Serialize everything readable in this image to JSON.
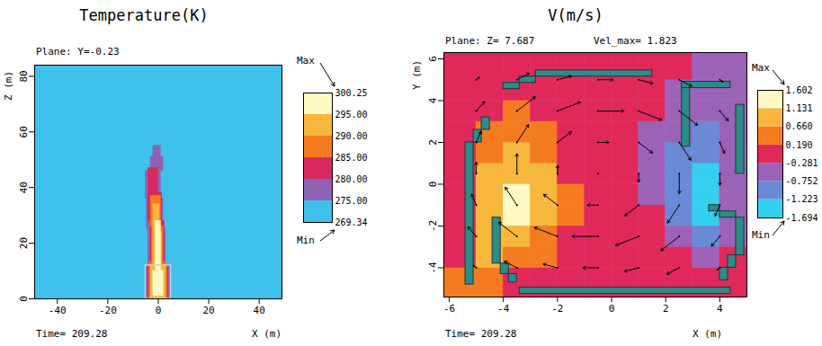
{
  "chart_data": [
    {
      "type": "heatmap",
      "title": "Temperature(K)",
      "subtitle": "Plane: Y=-0.23",
      "caption": "Time= 209.28",
      "x_label": "X (m)",
      "y_label": "Z (m)",
      "xlim": [
        -49,
        49
      ],
      "xticks": [
        -40,
        -20,
        0,
        20,
        40
      ],
      "ylim": [
        0,
        84
      ],
      "yticks": [
        0,
        20,
        40,
        60,
        80
      ],
      "cells": [
        [
          -49,
          49,
          0,
          84,
          271
        ],
        [
          -5,
          5,
          0,
          12,
          277
        ],
        [
          -4,
          3,
          12,
          25,
          277
        ],
        [
          -4.5,
          2,
          25,
          36,
          277
        ],
        [
          -5,
          1,
          36,
          46,
          277
        ],
        [
          -3,
          2,
          46,
          51,
          277
        ],
        [
          -2,
          1,
          51,
          55,
          277
        ],
        [
          -4,
          4,
          0,
          12,
          282
        ],
        [
          -3,
          2.5,
          12,
          28,
          282
        ],
        [
          -4,
          1.5,
          28,
          38,
          282
        ],
        [
          -4,
          0,
          38,
          47,
          282
        ],
        [
          -3.5,
          3.5,
          0,
          13,
          287
        ],
        [
          -2.5,
          2,
          13,
          26,
          287
        ],
        [
          -3,
          1,
          26,
          37,
          287
        ],
        [
          -3,
          3,
          0,
          12,
          292
        ],
        [
          -2,
          1.5,
          12,
          24,
          292
        ],
        [
          -2,
          0.5,
          24,
          34,
          292
        ],
        [
          -2,
          2,
          1,
          10,
          297
        ],
        [
          -1,
          1,
          10,
          28,
          297
        ]
      ],
      "obstacles": {
        "color": "#d0d0d0",
        "rects": [
          [
            -5,
            5,
            0,
            12
          ]
        ]
      },
      "colorbar": {
        "max_label": "Max",
        "min_label": "Min",
        "ticks": [
          269.34,
          {
            "value": 275,
            "label": "275.00"
          },
          {
            "value": 280,
            "label": "280.00"
          },
          {
            "value": 285,
            "label": "285.00"
          },
          {
            "value": 290,
            "label": "290.00"
          },
          {
            "value": 295,
            "label": "295.00"
          },
          300.25
        ],
        "colors": [
          "#3fc1ec",
          "#8e63b4",
          "#d62a5e",
          "#f47b20",
          "#f6b73c",
          "#fff9c4"
        ]
      }
    },
    {
      "type": "vector_field",
      "title": "V(m/s)",
      "subtitle": "Plane: Z= 7.687",
      "annotation": "Vel_max= 1.823",
      "caption": "Time= 209.28",
      "x_label": "X (m)",
      "y_label": "Y (m)",
      "xlim": [
        -6.2,
        5
      ],
      "xticks": [
        -6,
        -4,
        -2,
        0,
        2,
        4
      ],
      "ylim": [
        -5.4,
        6.3
      ],
      "yticks": [
        -4,
        -2,
        0,
        2,
        4,
        6
      ],
      "cells": {
        "x_edges": [
          -6.2,
          -5,
          -4,
          -3,
          -2,
          -1,
          0,
          1,
          2,
          3,
          4,
          5
        ],
        "y_edges": [
          -5.4,
          -4,
          -3,
          -2,
          -1,
          0,
          1,
          2,
          3,
          4,
          5,
          6.3
        ],
        "values": [
          [
            0.3,
            0.5,
            0.1,
            0,
            0,
            0,
            0,
            0,
            0,
            -0.1,
            -0.1
          ],
          [
            0,
            0.7,
            0.5,
            0.2,
            0,
            0,
            0,
            0,
            -0.1,
            -0.4,
            -0.2
          ],
          [
            0,
            0.8,
            0.9,
            0.4,
            0.1,
            0,
            0,
            -0.1,
            -0.5,
            -0.9,
            -0.4
          ],
          [
            0,
            0.9,
            1.2,
            0.7,
            0.2,
            0,
            0,
            -0.2,
            -0.8,
            -1.3,
            -0.6
          ],
          [
            0,
            0.8,
            1.2,
            0.8,
            0.2,
            0,
            -0.1,
            -0.3,
            -0.9,
            -1.4,
            -0.7
          ],
          [
            0,
            0.7,
            1.1,
            0.7,
            0.1,
            0,
            -0.1,
            -0.4,
            -1.0,
            -1.3,
            -0.6
          ],
          [
            0,
            0.5,
            0.8,
            0.5,
            0.1,
            0,
            -0.1,
            -0.4,
            -0.9,
            -1.1,
            -0.5
          ],
          [
            0,
            0.3,
            0.5,
            0.3,
            0,
            0,
            -0.1,
            -0.3,
            -0.6,
            -0.8,
            -0.5
          ],
          [
            0,
            0.1,
            0.2,
            0.1,
            0,
            0,
            0,
            -0.2,
            -0.4,
            -0.6,
            -0.6
          ],
          [
            0,
            0,
            0,
            0,
            0,
            0,
            0,
            0,
            -0.3,
            -0.4,
            -0.7
          ],
          [
            0,
            0,
            0,
            0,
            0,
            0,
            0,
            0,
            0,
            -0.3,
            -0.5
          ]
        ]
      },
      "vectors": {
        "color": "#000000",
        "x": [
          -5,
          -3.5,
          -2,
          -0.5,
          1,
          2.5,
          4
        ],
        "y": [
          -4,
          -2.5,
          -1,
          0.5,
          2,
          3.5,
          5
        ],
        "u": [
          [
            -0.14,
            -0.58,
            -0.66,
            -0.7,
            -0.66,
            -0.58,
            -0.14
          ],
          [
            -0.39,
            -0.85,
            -1.07,
            -1.2,
            -1.07,
            -0.85,
            -0.39
          ],
          [
            -0.22,
            -0.54,
            -0.64,
            -0.5,
            -0.64,
            -0.54,
            -0.22
          ],
          [
            0,
            0,
            0,
            0,
            0,
            0,
            0
          ],
          [
            0.22,
            0.54,
            0.64,
            0.5,
            0.64,
            0.54,
            0.22
          ],
          [
            0.39,
            0.85,
            1.07,
            1.2,
            1.07,
            0.85,
            0.39
          ],
          [
            0.14,
            0.58,
            0.66,
            0.7,
            0.66,
            0.58,
            0.14
          ]
        ],
        "v": [
          [
            0.14,
            0.39,
            0.22,
            0,
            -0.22,
            -0.39,
            -0.14
          ],
          [
            0.58,
            0.85,
            0.54,
            0,
            -0.54,
            -0.85,
            -0.58
          ],
          [
            0.66,
            1.07,
            0.64,
            0,
            -0.64,
            -1.07,
            -0.66
          ],
          [
            0.7,
            1.2,
            0.5,
            0,
            -0.5,
            -1.2,
            -0.7
          ],
          [
            0.66,
            1.07,
            0.64,
            0,
            -0.64,
            -1.07,
            -0.66
          ],
          [
            0.58,
            0.85,
            0.54,
            0,
            -0.54,
            -0.85,
            -0.58
          ],
          [
            0.14,
            0.39,
            0.22,
            0,
            -0.22,
            -0.39,
            -0.14
          ]
        ]
      },
      "obstacles": {
        "color": "#2e8b87",
        "rects": [
          [
            -2.8,
            1.5,
            5.15,
            5.45
          ],
          [
            -3.4,
            -2.8,
            4.85,
            5.15
          ],
          [
            -4,
            -3.4,
            4.55,
            4.85
          ],
          [
            -4.8,
            -4.5,
            2.6,
            3.2
          ],
          [
            -5.1,
            -4.8,
            2,
            2.6
          ],
          [
            -5.4,
            -5.1,
            -4.8,
            2
          ],
          [
            -4.4,
            -4.1,
            -3.8,
            -1.6
          ],
          [
            -4.1,
            -3.8,
            -4.3,
            -3.8
          ],
          [
            -3.8,
            -3.5,
            -4.7,
            -4.3
          ],
          [
            -3.4,
            4.4,
            -5.25,
            -4.95
          ],
          [
            4,
            4.3,
            -4.6,
            -4
          ],
          [
            4.3,
            4.6,
            -4,
            -3.4
          ],
          [
            4.6,
            4.9,
            -3.4,
            -1.6
          ],
          [
            4,
            4.6,
            -1.6,
            -1.3
          ],
          [
            3.6,
            4,
            -1.3,
            -1
          ],
          [
            2.6,
            2.9,
            1.8,
            4.9
          ],
          [
            2.6,
            4.4,
            4.6,
            4.9
          ],
          [
            4.6,
            4.9,
            0.5,
            3.8
          ]
        ]
      },
      "colorbar": {
        "max_label": "Max",
        "min_label": "Min",
        "ticks": [
          -1.694,
          -1.223,
          -0.752,
          -0.281,
          {
            "value": 0.19,
            "label": "0.190"
          },
          {
            "value": 0.66,
            "label": "0.660"
          },
          1.131,
          1.602
        ],
        "colors": [
          "#33d0f0",
          "#6a8ad6",
          "#9b62b8",
          "#e0285a",
          "#f47b20",
          "#f6b73c",
          "#fff9c4"
        ]
      }
    }
  ]
}
